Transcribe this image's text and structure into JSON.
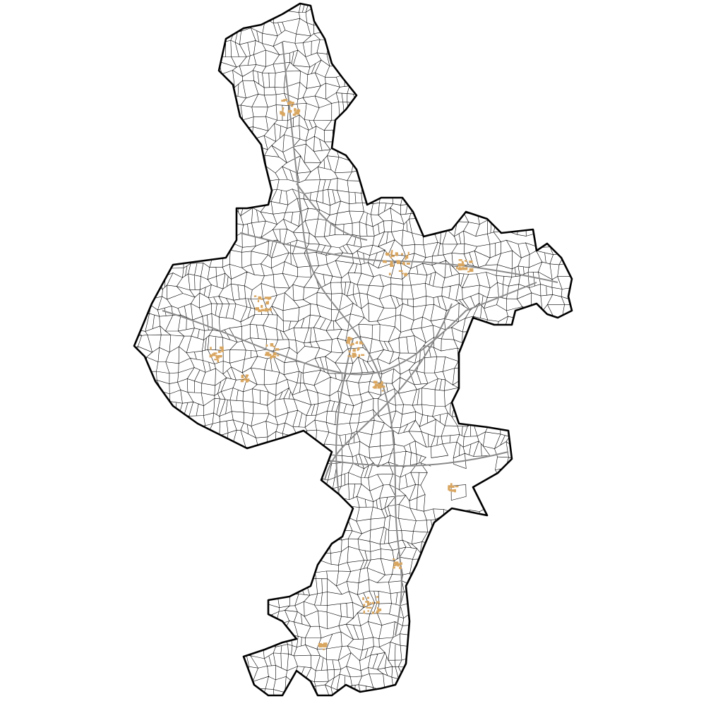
{
  "map": {
    "colors": {
      "background": "#ffffff",
      "boundary": "#000000",
      "parcel": "#000000",
      "road": "#8a8a8a",
      "building": "#d9a660"
    }
  }
}
